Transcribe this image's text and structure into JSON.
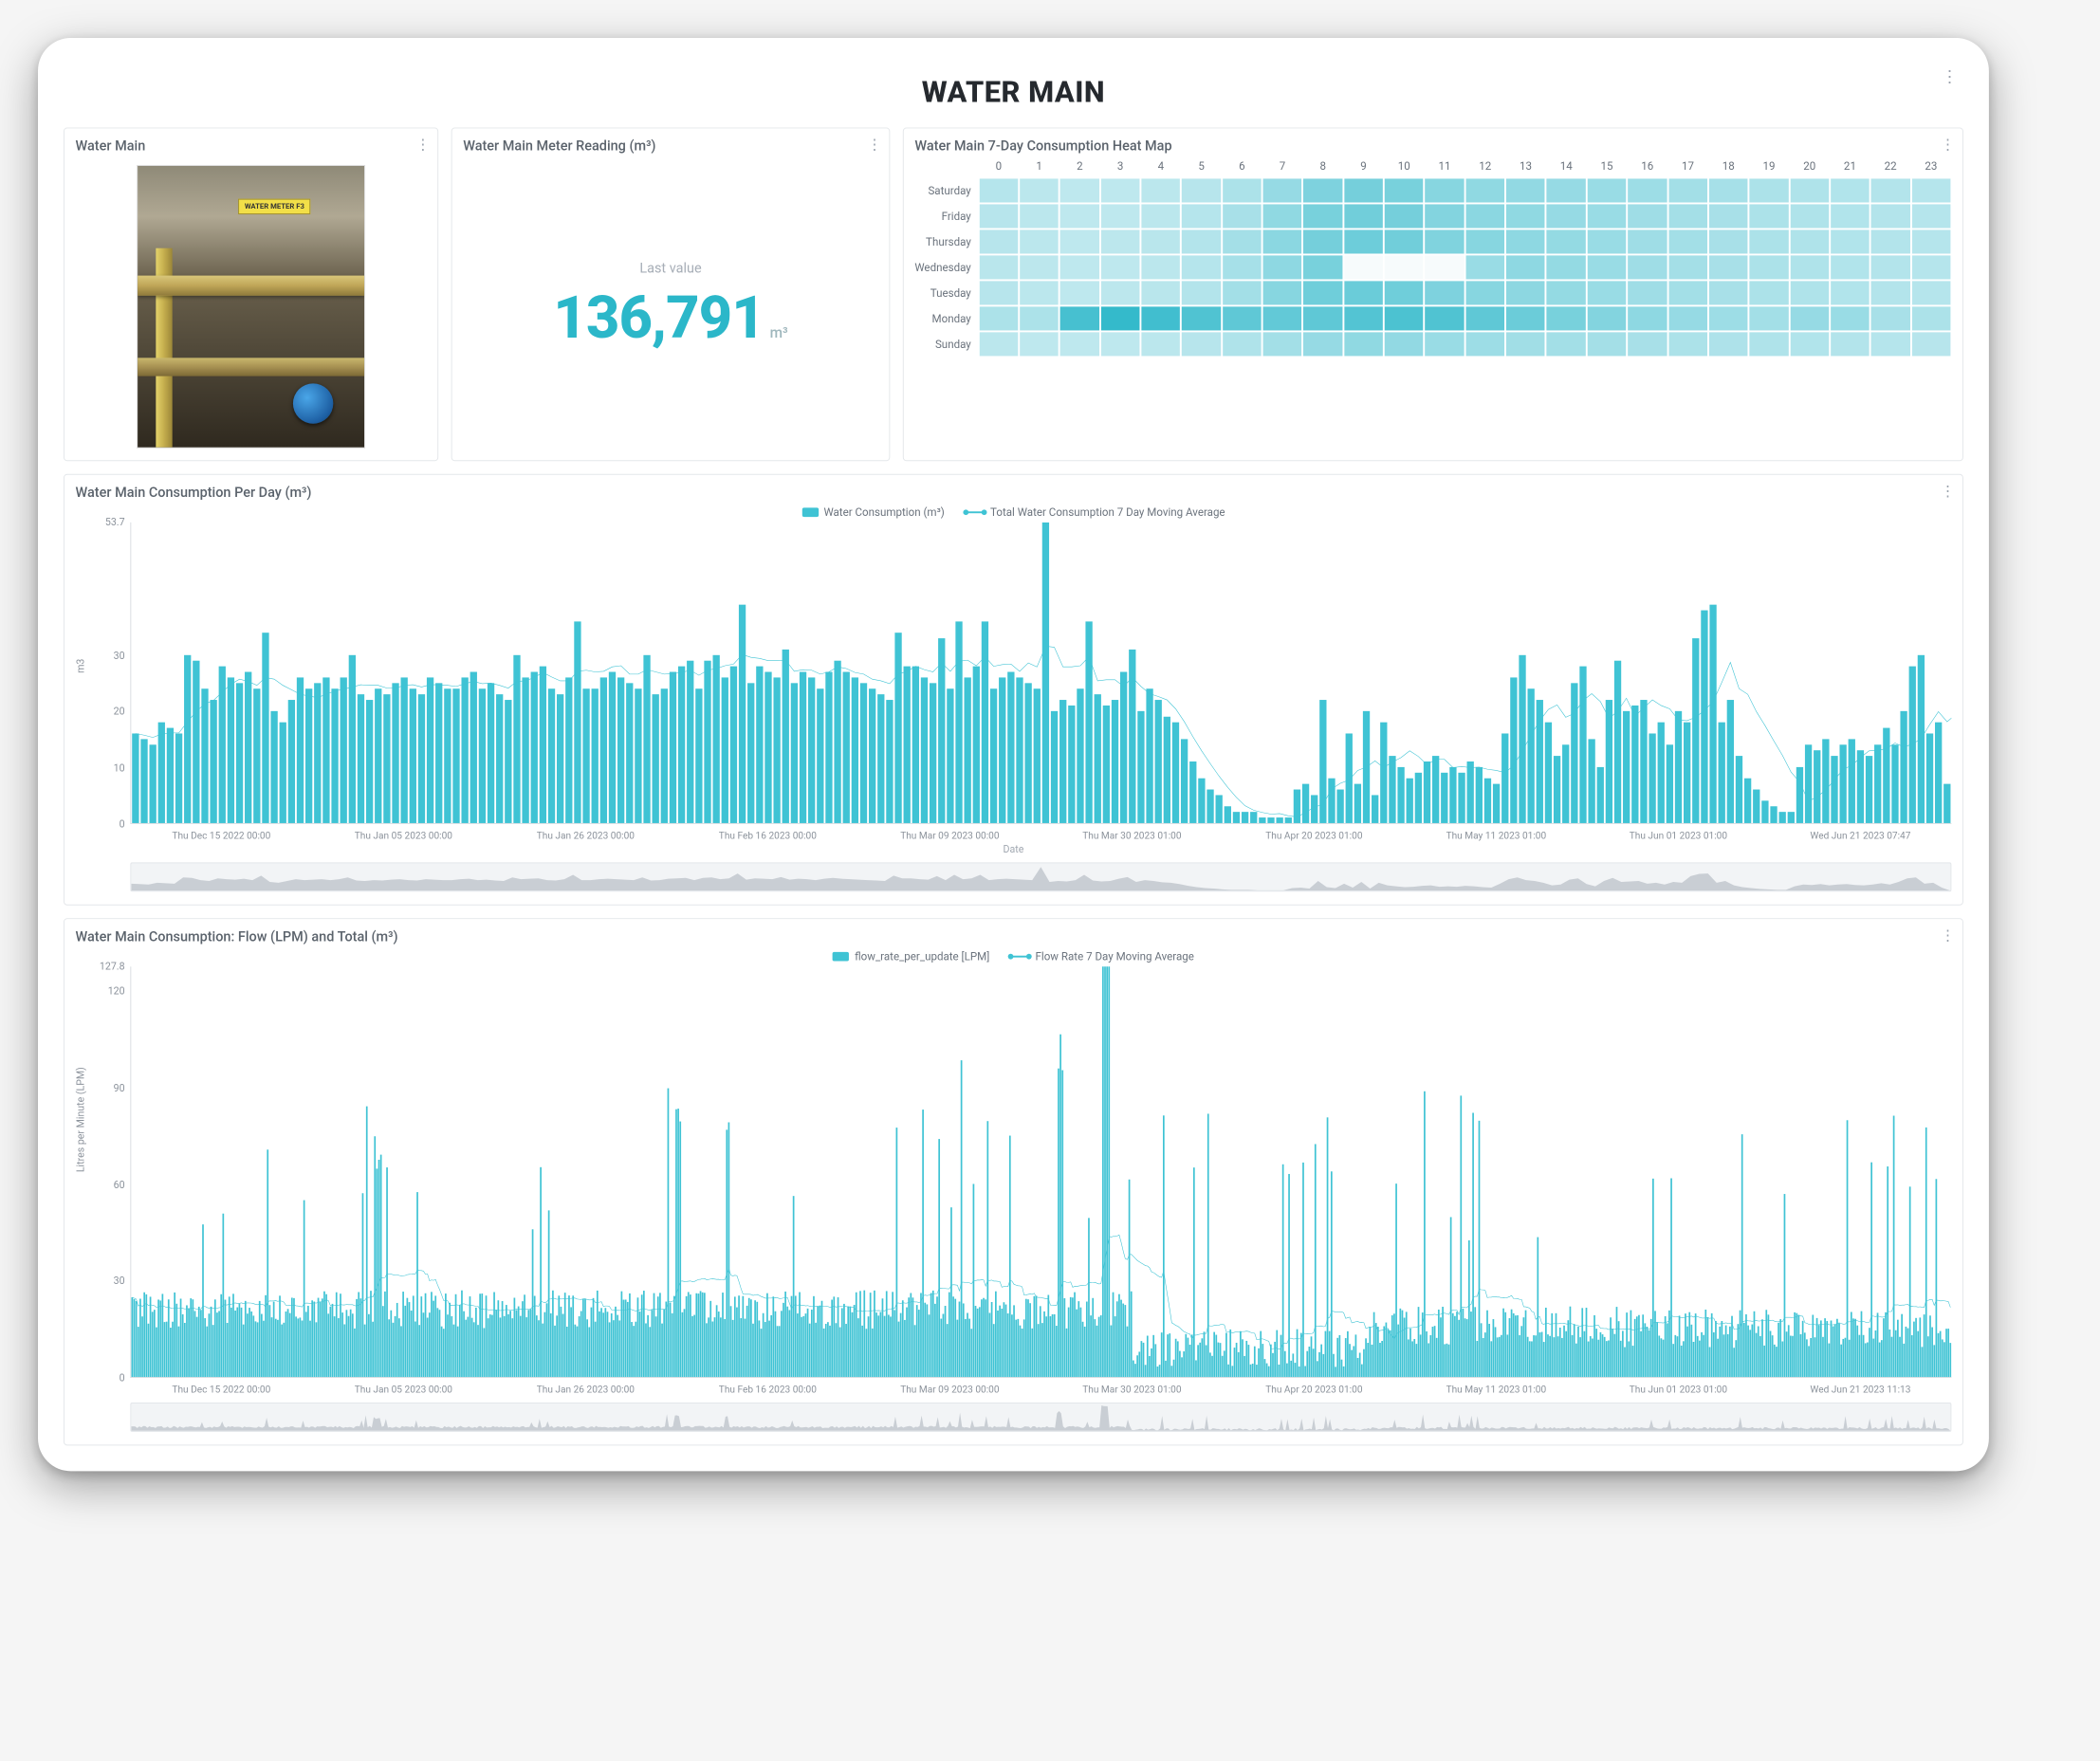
{
  "page": {
    "title": "WATER MAIN"
  },
  "panels": {
    "image": {
      "title": "Water Main",
      "tag_text": "WATER METER F3"
    },
    "meter": {
      "title": "Water Main Meter Reading (m³)",
      "label": "Last value",
      "value": "136,791",
      "unit": "m³",
      "value_color": "#2bb7c9"
    },
    "heatmap": {
      "title": "Water Main 7-Day Consumption Heat Map",
      "hours": [
        "0",
        "1",
        "2",
        "3",
        "4",
        "5",
        "6",
        "7",
        "8",
        "9",
        "10",
        "11",
        "12",
        "13",
        "14",
        "15",
        "16",
        "17",
        "18",
        "19",
        "20",
        "21",
        "22",
        "23"
      ],
      "days": [
        "Saturday",
        "Friday",
        "Thursday",
        "Wednesday",
        "Tuesday",
        "Monday",
        "Sunday"
      ],
      "color_min": "#e3f4f7",
      "color_max": "#2bb7c9",
      "color_empty": "#f7fbfc",
      "values": [
        [
          0.25,
          0.22,
          0.2,
          0.2,
          0.22,
          0.24,
          0.3,
          0.42,
          0.55,
          0.6,
          0.58,
          0.5,
          0.45,
          0.44,
          0.42,
          0.4,
          0.38,
          0.35,
          0.33,
          0.3,
          0.28,
          0.27,
          0.26,
          0.25
        ],
        [
          0.24,
          0.22,
          0.2,
          0.2,
          0.22,
          0.25,
          0.32,
          0.45,
          0.58,
          0.62,
          0.6,
          0.52,
          0.48,
          0.45,
          0.42,
          0.4,
          0.37,
          0.34,
          0.32,
          0.3,
          0.28,
          0.27,
          0.26,
          0.25
        ],
        [
          0.24,
          0.22,
          0.2,
          0.21,
          0.23,
          0.26,
          0.34,
          0.48,
          0.6,
          0.64,
          0.62,
          0.54,
          0.5,
          0.46,
          0.43,
          0.4,
          0.37,
          0.35,
          0.32,
          0.3,
          0.28,
          0.27,
          0.26,
          0.25
        ],
        [
          0.23,
          0.21,
          0.2,
          0.2,
          0.22,
          0.25,
          0.33,
          0.46,
          0.58,
          0.08,
          0.02,
          0.06,
          0.4,
          0.46,
          0.43,
          0.4,
          0.37,
          0.34,
          0.32,
          0.3,
          0.28,
          0.27,
          0.26,
          0.25
        ],
        [
          0.24,
          0.22,
          0.2,
          0.21,
          0.23,
          0.26,
          0.35,
          0.5,
          0.63,
          0.66,
          0.63,
          0.55,
          0.5,
          0.47,
          0.43,
          0.4,
          0.37,
          0.35,
          0.32,
          0.3,
          0.28,
          0.27,
          0.26,
          0.25
        ],
        [
          0.3,
          0.3,
          0.85,
          0.95,
          0.88,
          0.8,
          0.72,
          0.7,
          0.72,
          0.78,
          0.82,
          0.8,
          0.72,
          0.65,
          0.58,
          0.52,
          0.46,
          0.42,
          0.38,
          0.35,
          0.42,
          0.4,
          0.32,
          0.3
        ],
        [
          0.22,
          0.2,
          0.2,
          0.2,
          0.22,
          0.24,
          0.28,
          0.35,
          0.42,
          0.45,
          0.44,
          0.4,
          0.38,
          0.36,
          0.35,
          0.34,
          0.32,
          0.3,
          0.29,
          0.28,
          0.27,
          0.26,
          0.25,
          0.24
        ]
      ]
    },
    "daily": {
      "title": "Water Main Consumption Per Day (m³)",
      "legend_bar": "Water Consumption (m³)",
      "legend_line": "Total Water Consumption 7 Day Moving Average",
      "y_label": "m3",
      "y_max": 53.7,
      "y_ticks": [
        0,
        10,
        20,
        30,
        53.7
      ],
      "bar_color": "#3fc3d4",
      "line_color": "#3fc3d4",
      "x_ticks": [
        "Thu Dec 15 2022 00:00",
        "Thu Jan 05 2023 00:00",
        "Thu Jan 26 2023 00:00",
        "Thu Feb 16 2023 00:00",
        "Thu Mar 09 2023 00:00",
        "Thu Mar 30 2023 01:00",
        "Thu Apr 20 2023 01:00",
        "Thu May 11 2023 01:00",
        "Thu Jun 01 2023 01:00",
        "Wed Jun 21 2023 07:47"
      ],
      "x_axis_label": "Date",
      "bars": [
        16,
        15,
        14,
        18,
        17,
        16,
        30,
        29,
        24,
        22,
        28,
        26,
        25,
        27,
        24,
        34,
        20,
        18,
        22,
        26,
        24,
        25,
        26,
        24,
        26,
        30,
        23,
        22,
        24,
        23,
        25,
        26,
        24,
        23,
        26,
        25,
        24,
        24,
        26,
        27,
        24,
        25,
        23,
        22,
        30,
        26,
        27,
        28,
        24,
        23,
        26,
        36,
        24,
        24,
        26,
        27,
        26,
        25,
        24,
        30,
        23,
        24,
        27,
        28,
        29,
        24,
        29,
        30,
        26,
        28,
        39,
        25,
        28,
        27,
        26,
        31,
        25,
        27,
        26,
        24,
        27,
        29,
        27,
        26,
        25,
        24,
        23,
        22,
        34,
        28,
        28,
        26,
        25,
        33,
        24,
        36,
        26,
        28,
        36,
        24,
        26,
        27,
        26,
        25,
        24,
        53.7,
        20,
        22,
        21,
        24,
        36,
        23,
        21,
        22,
        27,
        31,
        20,
        24,
        22,
        19,
        18,
        15,
        11,
        8,
        6,
        5,
        3,
        2,
        2,
        2,
        1,
        1,
        1,
        1,
        6,
        7,
        5,
        22,
        8,
        6,
        16,
        7,
        20,
        5,
        18,
        12,
        10,
        8,
        9,
        11,
        12,
        9,
        10,
        9,
        11,
        10,
        8,
        7,
        16,
        26,
        30,
        24,
        22,
        18,
        12,
        14,
        25,
        28,
        15,
        10,
        22,
        29,
        20,
        21,
        22,
        16,
        18,
        14,
        20,
        18,
        33,
        38,
        39,
        18,
        22,
        12,
        8,
        6,
        4,
        3,
        2,
        2,
        10,
        14,
        13,
        15,
        12,
        14,
        15,
        13,
        12,
        14,
        17,
        14,
        20,
        28,
        30,
        16,
        18,
        7
      ],
      "avg": [
        16,
        15.7,
        15.3,
        15.9,
        16.1,
        16.1,
        18.1,
        19.9,
        21.3,
        21.9,
        23.4,
        24.8,
        25.7,
        25.3,
        24.6,
        26,
        25.7,
        24.6,
        23.8,
        23,
        22.7,
        22.4,
        23,
        23.6,
        23.9,
        24.3,
        24.7,
        24.6,
        24.6,
        24.1,
        24.1,
        24.6,
        24.7,
        24.3,
        24.7,
        24.7,
        24.6,
        24.4,
        24.9,
        25.3,
        24.9,
        25,
        24.6,
        24.1,
        25.3,
        25.4,
        26,
        26.9,
        26.1,
        25.4,
        25.4,
        27.1,
        27.3,
        27,
        27.1,
        27.9,
        28.1,
        26.6,
        26.6,
        27.4,
        27,
        26.6,
        26.7,
        26.9,
        27.3,
        26.4,
        27.3,
        27.6,
        28.1,
        28.4,
        30.1,
        29.6,
        29.4,
        29,
        29,
        29.1,
        27.1,
        27.4,
        27.3,
        26.6,
        27,
        27.9,
        27.6,
        26.9,
        26.6,
        25.7,
        25.4,
        24.9,
        26.6,
        27.1,
        28,
        27.4,
        27,
        28.6,
        27.1,
        28.9,
        29.1,
        28.1,
        29.7,
        28,
        28.3,
        28.4,
        27.1,
        28.6,
        27.9,
        31.6,
        31.4,
        27.9,
        27.9,
        28.1,
        29.7,
        25.4,
        25.6,
        25.6,
        24.4,
        26,
        24.4,
        23.1,
        22.6,
        22,
        20.4,
        18.1,
        15.4,
        12.9,
        10.6,
        8.4,
        6.4,
        4.6,
        3.1,
        2.3,
        1.9,
        1.6,
        1.7,
        1.3,
        1.1,
        1.9,
        2.9,
        3.3,
        6.1,
        7.1,
        7.7,
        9.4,
        10,
        11.1,
        9.9,
        10.9,
        11.7,
        12.9,
        11.9,
        10.4,
        11.4,
        11.4,
        9.9,
        10.1,
        9.9,
        10,
        9.6,
        9.4,
        9,
        10.3,
        12.9,
        15.7,
        18.3,
        20.3,
        21.1,
        18.9,
        19.6,
        21.9,
        23.1,
        21.7,
        18.7,
        20,
        22.3,
        19.1,
        20.6,
        22,
        21,
        20.4,
        18.4,
        18.3,
        18.9,
        20.1,
        21.7,
        25.1,
        28.7,
        24,
        23,
        19.9,
        17.4,
        14.7,
        12.1,
        9.1,
        7.3,
        3.9,
        4.7,
        5.9,
        7.7,
        9.6,
        10.3,
        11.7,
        12.9,
        13,
        13.3,
        14.3,
        13.6,
        14.1,
        15.1,
        17.6,
        19.9,
        18.1,
        19.4,
        17.7
      ]
    },
    "flow": {
      "title": "Water Main Consumption: Flow (LPM) and Total (m³)",
      "legend_bar": "flow_rate_per_update [LPM]",
      "legend_line": "Flow Rate 7 Day Moving Average",
      "y_label": "Litres per Minute (LPM)",
      "y_max": 127.8,
      "y_ticks": [
        0,
        30,
        60,
        90,
        120,
        127.8
      ],
      "bar_color": "#3fc3d4",
      "line_color": "#3fc3d4",
      "x_ticks": [
        "Thu Dec 15 2022 00:00",
        "Thu Jan 05 2023 00:00",
        "Thu Jan 26 2023 00:00",
        "Thu Feb 16 2023 00:00",
        "Thu Mar 09 2023 00:00",
        "Thu Mar 30 2023 01:00",
        "Thu Apr 20 2023 01:00",
        "Thu May 11 2023 01:00",
        "Thu Jun 01 2023 01:00",
        "Wed Jun 21 2023 11:13"
      ]
    }
  }
}
